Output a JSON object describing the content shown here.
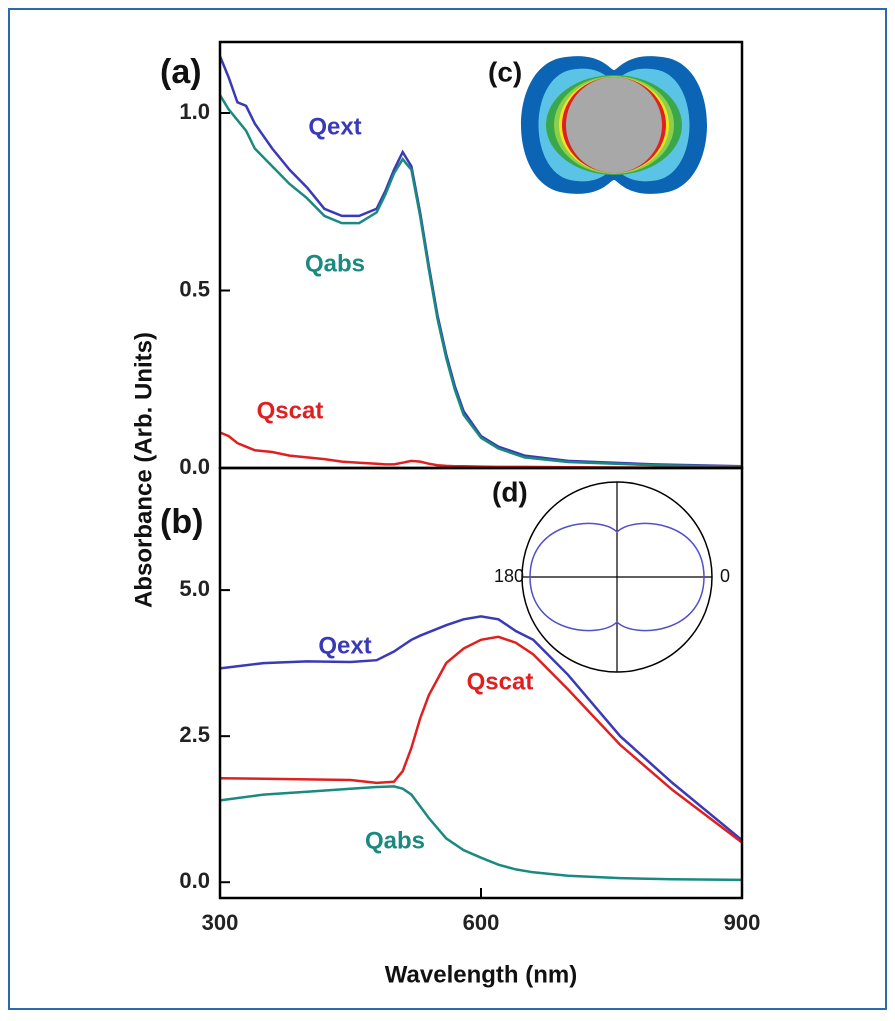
{
  "chart_data": [
    {
      "type": "line",
      "panel_label": "(a)",
      "ylabel": "Absorbance (Arb. Units)",
      "inset_label": "(c)",
      "x": [
        300,
        310,
        320,
        330,
        340,
        360,
        380,
        400,
        420,
        440,
        460,
        480,
        490,
        500,
        510,
        520,
        530,
        540,
        550,
        560,
        570,
        580,
        600,
        620,
        650,
        700,
        800,
        900
      ],
      "xlim": [
        300,
        900
      ],
      "ylim": [
        0,
        1.2
      ],
      "yticks": [
        {
          "value": 0,
          "label": "0.0"
        },
        0.5,
        {
          "value": 1,
          "label": "1.0"
        }
      ],
      "series": [
        {
          "name": "Qext",
          "color": "#3a3ab8",
          "values": [
            1.16,
            1.1,
            1.03,
            1.02,
            0.97,
            0.9,
            0.84,
            0.79,
            0.73,
            0.71,
            0.71,
            0.73,
            0.78,
            0.84,
            0.89,
            0.85,
            0.72,
            0.57,
            0.43,
            0.32,
            0.23,
            0.16,
            0.09,
            0.06,
            0.035,
            0.02,
            0.01,
            0.005
          ]
        },
        {
          "name": "Qabs",
          "color": "#1a8a80",
          "values": [
            1.05,
            1.01,
            0.98,
            0.95,
            0.9,
            0.85,
            0.8,
            0.76,
            0.71,
            0.69,
            0.69,
            0.72,
            0.77,
            0.83,
            0.87,
            0.84,
            0.71,
            0.56,
            0.42,
            0.31,
            0.22,
            0.15,
            0.085,
            0.055,
            0.03,
            0.017,
            0.008,
            0.004
          ]
        },
        {
          "name": "Qscat",
          "color": "#e02020",
          "values": [
            0.1,
            0.09,
            0.07,
            0.06,
            0.05,
            0.045,
            0.035,
            0.03,
            0.025,
            0.018,
            0.015,
            0.012,
            0.01,
            0.01,
            0.015,
            0.02,
            0.018,
            0.012,
            0.008,
            0.006,
            0.005,
            0.005,
            0.004,
            0.003,
            0.003,
            0.002,
            0.001,
            0.001
          ]
        }
      ]
    },
    {
      "type": "line",
      "panel_label": "(b)",
      "xlabel": "Wavelength (nm)",
      "inset_label": "(d)",
      "polar_angles": [
        180,
        0
      ],
      "x": [
        300,
        350,
        400,
        450,
        480,
        500,
        510,
        520,
        530,
        540,
        560,
        580,
        600,
        620,
        640,
        660,
        700,
        760,
        820,
        900
      ],
      "xlim": [
        300,
        900
      ],
      "xticks": [
        300,
        600,
        900
      ],
      "ylim": [
        -0.27,
        7.09
      ],
      "yticks": [
        {
          "value": 0,
          "label": "0.0"
        },
        2.5,
        {
          "value": 5,
          "label": "5.0"
        }
      ],
      "series": [
        {
          "name": "Qext",
          "color": "#3a3ab8",
          "values": [
            3.66,
            3.75,
            3.78,
            3.77,
            3.8,
            3.95,
            4.05,
            4.15,
            4.22,
            4.28,
            4.4,
            4.5,
            4.55,
            4.5,
            4.3,
            4.15,
            3.55,
            2.5,
            1.7,
            0.72
          ]
        },
        {
          "name": "Qscat",
          "color": "#e02020",
          "values": [
            1.78,
            1.77,
            1.76,
            1.75,
            1.7,
            1.72,
            1.9,
            2.3,
            2.8,
            3.2,
            3.75,
            4.0,
            4.15,
            4.2,
            4.1,
            3.9,
            3.3,
            2.35,
            1.58,
            0.68
          ]
        },
        {
          "name": "Qabs",
          "color": "#1a8a80",
          "values": [
            1.4,
            1.5,
            1.55,
            1.6,
            1.63,
            1.64,
            1.6,
            1.5,
            1.3,
            1.1,
            0.75,
            0.55,
            0.42,
            0.3,
            0.22,
            0.17,
            0.11,
            0.07,
            0.05,
            0.04
          ]
        }
      ]
    }
  ]
}
